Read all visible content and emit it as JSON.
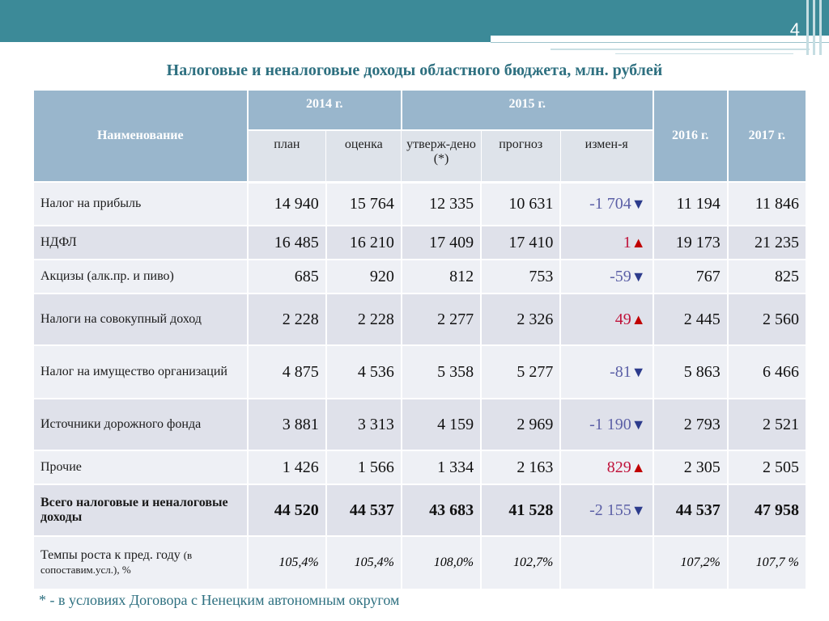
{
  "slide": {
    "number": "4",
    "title": "Налоговые и неналоговые доходы областного бюджета, млн. рублей",
    "footnote": "* - в условиях Договора с Ненецким автономным округом"
  },
  "table": {
    "header": {
      "name": "Наименование",
      "y2014": "2014 г.",
      "y2015": "2015 г.",
      "y2016": "2016 г.",
      "y2017": "2017 г.",
      "sub": [
        "план",
        "оценка",
        "утверж-дено (*)",
        "прогноз",
        "измен-я"
      ]
    },
    "rows": [
      {
        "name": "Налог на прибыль",
        "v": [
          "14 940",
          "15 764",
          "12 335",
          "10 631"
        ],
        "change": "-1 704",
        "dir": "down",
        "v2016": "11 194",
        "v2017": "11 846"
      },
      {
        "name": "НДФЛ",
        "v": [
          "16 485",
          "16 210",
          "17 409",
          "17 410"
        ],
        "change": "1",
        "dir": "up",
        "v2016": "19 173",
        "v2017": "21 235"
      },
      {
        "name": "Акцизы (алк.пр. и пиво)",
        "v": [
          "685",
          "920",
          "812",
          "753"
        ],
        "change": "-59",
        "dir": "down",
        "v2016": "767",
        "v2017": "825"
      },
      {
        "name": "Налоги на совокупный доход",
        "v": [
          "2 228",
          "2 228",
          "2 277",
          "2 326"
        ],
        "change": "49",
        "dir": "up",
        "v2016": "2 445",
        "v2017": "2 560"
      },
      {
        "name": "Налог на имущество организаций",
        "v": [
          "4 875",
          "4 536",
          "5 358",
          "5 277"
        ],
        "change": "-81",
        "dir": "down",
        "v2016": "5 863",
        "v2017": "6 466"
      },
      {
        "name": "Источники дорожного фонда",
        "v": [
          "3 881",
          "3 313",
          "4 159",
          "2 969"
        ],
        "change": "-1 190",
        "dir": "down",
        "v2016": "2 793",
        "v2017": "2 521"
      },
      {
        "name": "Прочие",
        "v": [
          "1 426",
          "1 566",
          "1 334",
          "2 163"
        ],
        "change": "829",
        "dir": "up",
        "v2016": "2 305",
        "v2017": "2 505"
      }
    ],
    "total": {
      "name": "Всего налоговые и неналоговые доходы",
      "v": [
        "44 520",
        "44 537",
        "43 683",
        "41 528"
      ],
      "change": "-2 155",
      "dir": "down",
      "v2016": "44 537",
      "v2017": "47 958"
    },
    "growth": {
      "name_main": "Темпы роста к пред. году",
      "name_small": "(в сопоставим.усл.), %",
      "v": [
        "105,4%",
        "105,4%",
        "108,0%",
        "102,7%"
      ],
      "change": "",
      "v2016": "107,2%",
      "v2017": "107,7 %"
    }
  }
}
